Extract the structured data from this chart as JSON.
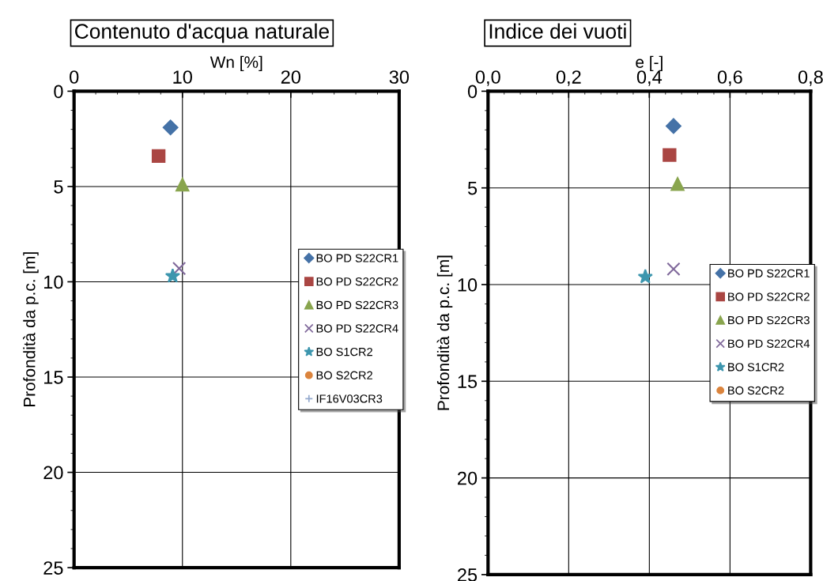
{
  "chart_data": [
    {
      "type": "scatter",
      "title": "Contenuto d'acqua naturale",
      "xlabel": "Wn [%]",
      "ylabel": "Profondità da p.c. [m]",
      "xlim": [
        0,
        30
      ],
      "xticks": [
        0,
        10,
        20,
        30
      ],
      "ylim": [
        25,
        0
      ],
      "yticks": [
        0,
        5,
        10,
        15,
        20,
        25
      ],
      "grid": true,
      "legend": "right",
      "series": [
        {
          "name": "BO PD S22CR1",
          "color": "#4572a7",
          "marker": "diamond",
          "x": [
            8.9
          ],
          "values": [
            1.9
          ]
        },
        {
          "name": "BO PD S22CR2",
          "color": "#aa4643",
          "marker": "square",
          "x": [
            7.8
          ],
          "values": [
            3.4
          ]
        },
        {
          "name": "BO PD S22CR3",
          "color": "#89a54e",
          "marker": "triangle",
          "x": [
            10.0
          ],
          "values": [
            4.9
          ]
        },
        {
          "name": "BO PD S22CR4",
          "color": "#80699b",
          "marker": "cross",
          "x": [
            9.7
          ],
          "values": [
            9.3
          ]
        },
        {
          "name": "BO S1CR2",
          "color": "#3d96ae",
          "marker": "star",
          "x": [
            9.1
          ],
          "values": [
            9.7
          ]
        },
        {
          "name": "BO S2CR2",
          "color": "#db843d",
          "marker": "circle"
        },
        {
          "name": "IF16V03CR3",
          "color": "#92a8cd",
          "marker": "plus"
        }
      ]
    },
    {
      "type": "scatter",
      "title": "Indice dei vuoti",
      "xlabel": "e [-]",
      "ylabel": "Profondità da p.c. [m]",
      "xlim": [
        0,
        0.8
      ],
      "xticks": [
        {
          "value": 0,
          "label": "0,0"
        },
        {
          "value": 0.2,
          "label": "0,2"
        },
        {
          "value": 0.4,
          "label": "0,4"
        },
        {
          "value": 0.6,
          "label": "0,6"
        },
        {
          "value": 0.8,
          "label": "0,8"
        }
      ],
      "ylim": [
        25,
        0
      ],
      "yticks": [
        0,
        5,
        10,
        15,
        20,
        25
      ],
      "grid": true,
      "legend": "right",
      "series": [
        {
          "name": "BO PD S22CR1",
          "color": "#4572a7",
          "marker": "diamond",
          "x": [
            0.46
          ],
          "values": [
            1.8
          ]
        },
        {
          "name": "BO PD S22CR2",
          "color": "#aa4643",
          "marker": "square",
          "x": [
            0.45
          ],
          "values": [
            3.3
          ]
        },
        {
          "name": "BO PD S22CR3",
          "color": "#89a54e",
          "marker": "triangle",
          "x": [
            0.47
          ],
          "values": [
            4.8
          ]
        },
        {
          "name": "BO PD S22CR4",
          "color": "#80699b",
          "marker": "cross",
          "x": [
            0.46
          ],
          "values": [
            9.2
          ]
        },
        {
          "name": "BO S1CR2",
          "color": "#3d96ae",
          "marker": "star",
          "x": [
            0.39
          ],
          "values": [
            9.6
          ]
        },
        {
          "name": "BO S2CR2",
          "color": "#db843d",
          "marker": "circle"
        }
      ]
    }
  ]
}
